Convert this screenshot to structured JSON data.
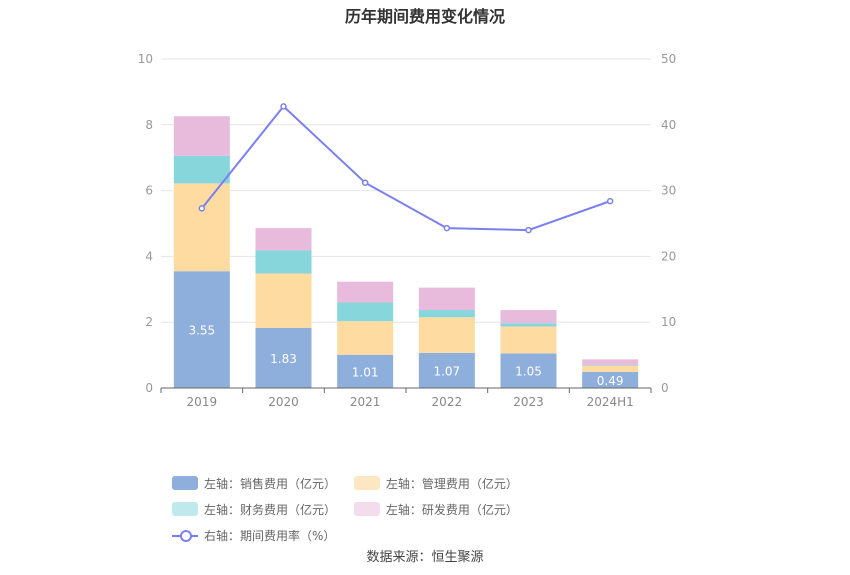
{
  "title": "历年期间费用变化情况",
  "source": "数据来源：恒生聚源",
  "chart_data": {
    "type": "bar",
    "stacked": true,
    "categories": [
      "2019",
      "2020",
      "2021",
      "2022",
      "2023",
      "2024H1"
    ],
    "left_axis": {
      "ylim": [
        0,
        10
      ],
      "ticks": [
        "0",
        "2",
        "4",
        "6",
        "8",
        "10"
      ]
    },
    "right_axis": {
      "ylim": [
        0,
        50
      ],
      "ticks": [
        "0",
        "10",
        "20",
        "30",
        "40",
        "50"
      ]
    },
    "series": [
      {
        "name": "左轴：销售费用（亿元）",
        "axis": "left",
        "type": "bar",
        "color": "#8eaedb",
        "values": [
          3.55,
          1.83,
          1.01,
          1.07,
          1.05,
          0.49
        ],
        "labels": [
          "3.55",
          "1.83",
          "1.01",
          "1.07",
          "1.05",
          "0.49"
        ]
      },
      {
        "name": "左轴：管理费用（亿元）",
        "axis": "left",
        "type": "bar",
        "color": "#fedba0",
        "values": [
          2.67,
          1.65,
          1.02,
          1.08,
          0.82,
          0.19
        ]
      },
      {
        "name": "左轴：财务费用（亿元）",
        "axis": "left",
        "type": "bar",
        "color": "#86d6db",
        "values": [
          0.84,
          0.7,
          0.57,
          0.22,
          0.1,
          0.02
        ]
      },
      {
        "name": "左轴：研发费用（亿元）",
        "axis": "left",
        "type": "bar",
        "color": "#e8badb",
        "values": [
          1.2,
          0.68,
          0.63,
          0.68,
          0.4,
          0.17
        ]
      },
      {
        "name": "右轴：期间费用率（%）",
        "axis": "right",
        "type": "line",
        "color": "#7b80f0",
        "values": [
          27.3,
          42.8,
          31.2,
          24.3,
          24.0,
          28.4
        ]
      }
    ],
    "legend_position": "bottom",
    "grid": true
  }
}
